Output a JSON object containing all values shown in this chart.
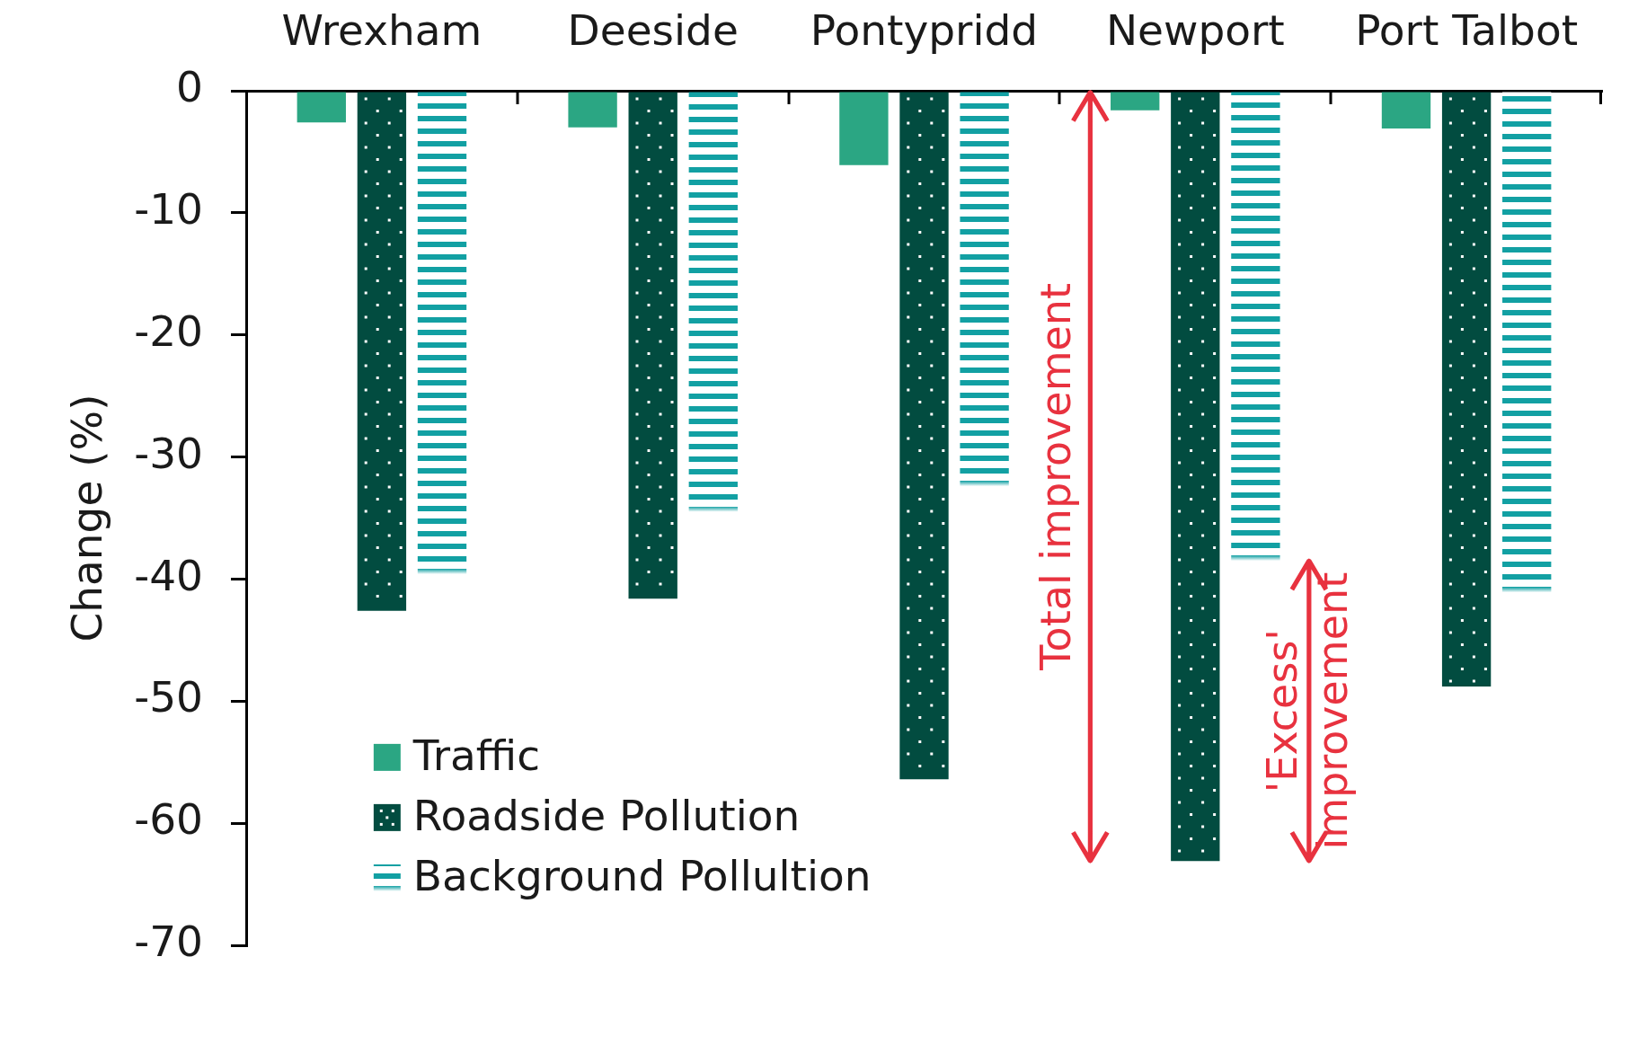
{
  "chart_data": {
    "type": "bar",
    "categories": [
      "Wrexham",
      "Deeside",
      "Pontypridd",
      "Newport",
      "Port Talbot"
    ],
    "series": [
      {
        "name": "Traffic",
        "color": "#2ba683",
        "values": [
          -2.6,
          -3.0,
          -6.1,
          -1.6,
          -3.1
        ]
      },
      {
        "name": "Roadside Pollution",
        "color": "#024c40",
        "values": [
          -42.6,
          -41.6,
          -56.4,
          -63.1,
          -48.8
        ]
      },
      {
        "name": "Background Pollultion",
        "color": "#12a0a3",
        "values": [
          -39.6,
          -34.5,
          -32.4,
          -38.5,
          -41.1
        ]
      }
    ],
    "ylabel": "Change (%)",
    "ylim": [
      -70,
      0
    ],
    "yticks": [
      0,
      -10,
      -20,
      -30,
      -40,
      -50,
      -60,
      -70
    ],
    "legend": "bottom left",
    "annotations": [
      "Total improvement",
      "'Excess'\nimprovement"
    ]
  }
}
